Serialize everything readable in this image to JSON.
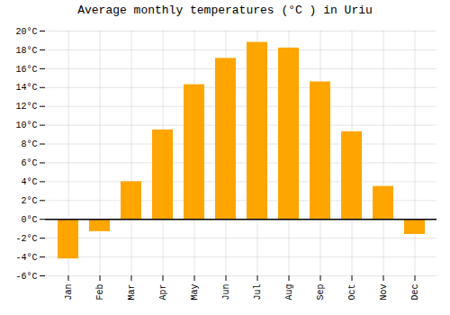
{
  "chart_data": {
    "type": "bar",
    "title": "Average monthly temperatures (°C ) in Uriu",
    "categories": [
      "Jan",
      "Feb",
      "Mar",
      "Apr",
      "May",
      "Jun",
      "Jul",
      "Aug",
      "Sep",
      "Oct",
      "Nov",
      "Dec"
    ],
    "values": [
      -4.2,
      -1.3,
      4.0,
      9.5,
      14.3,
      17.1,
      18.8,
      18.2,
      14.6,
      9.3,
      3.5,
      -1.6
    ],
    "color": "#FFA500",
    "ylim": [
      -6,
      20
    ],
    "yticks": [
      {
        "value": -6,
        "label": "-6°C"
      },
      {
        "value": -4,
        "label": "-4°C"
      },
      {
        "value": -2,
        "label": "-2°C"
      },
      {
        "value": 0,
        "label": "0°C"
      },
      {
        "value": 2,
        "label": "2°C"
      },
      {
        "value": 4,
        "label": "4°C"
      },
      {
        "value": 6,
        "label": "6°C"
      },
      {
        "value": 8,
        "label": "8°C"
      },
      {
        "value": 10,
        "label": "10°C"
      },
      {
        "value": 12,
        "label": "12°C"
      },
      {
        "value": 14,
        "label": "14°C"
      },
      {
        "value": 16,
        "label": "16°C"
      },
      {
        "value": 18,
        "label": "18°C"
      },
      {
        "value": 20,
        "label": "20°C"
      }
    ],
    "grid": true
  }
}
